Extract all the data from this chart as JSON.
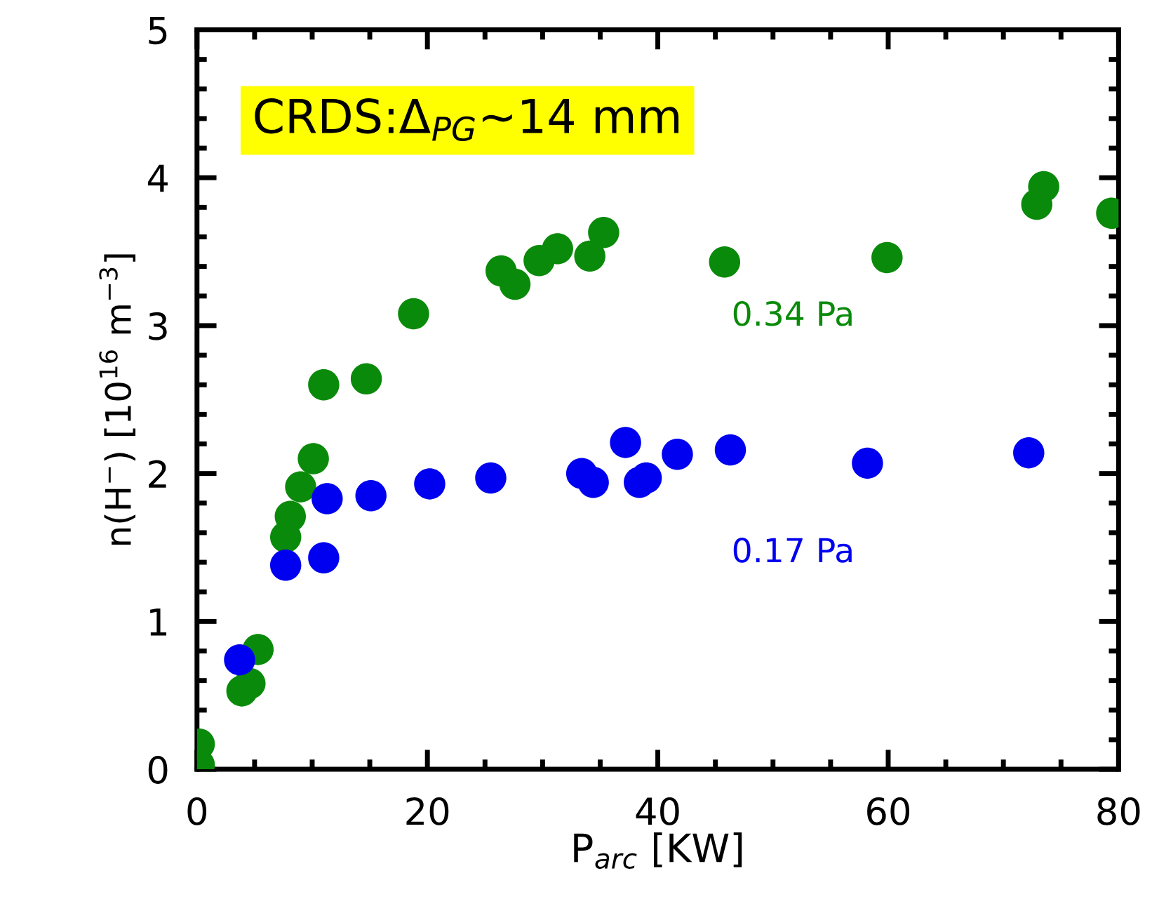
{
  "chart_data": {
    "type": "scatter",
    "xlabel": "P$_{arc}$ [KW]",
    "ylabel": "n(H$^{−}$) [10$^{16}$ m$^{−3}$]",
    "annotations": [
      "CRDS:Δ$_{PG}$∼14 mm"
    ],
    "series": [
      {
        "name": "0.34 Pa",
        "color": "#0a8a0a",
        "x": [
          0.2,
          0.2,
          3.9,
          4.6,
          5.3,
          7.7,
          8.1,
          9.0,
          10.1,
          11.0,
          14.7,
          18.8,
          26.4,
          27.6,
          29.7,
          31.3,
          34.1,
          35.3,
          45.8,
          59.9,
          72.9,
          73.5,
          79.4
        ],
        "values": [
          0.17,
          0.03,
          0.53,
          0.58,
          0.81,
          1.57,
          1.71,
          1.91,
          2.1,
          2.6,
          2.64,
          3.08,
          3.37,
          3.28,
          3.44,
          3.52,
          3.47,
          3.63,
          3.43,
          3.46,
          3.82,
          3.94,
          3.76
        ]
      },
      {
        "name": "0.17 Pa",
        "color": "#0000f0",
        "x": [
          3.7,
          7.7,
          11.0,
          11.3,
          15.1,
          20.2,
          25.5,
          33.4,
          34.4,
          37.2,
          38.4,
          39.0,
          41.7,
          46.3,
          58.2,
          72.2
        ],
        "values": [
          0.74,
          1.38,
          1.43,
          1.83,
          1.85,
          1.93,
          1.97,
          2.0,
          1.94,
          2.21,
          1.94,
          1.97,
          2.13,
          2.16,
          2.07,
          2.14
        ]
      }
    ],
    "xlim": [
      0,
      80
    ],
    "ylim": [
      0,
      5
    ],
    "xticks": [
      0,
      20,
      40,
      60,
      80
    ],
    "yticks": [
      0,
      1,
      2,
      3,
      4,
      5
    ],
    "marker": "circle",
    "legend": false,
    "grid": false
  }
}
